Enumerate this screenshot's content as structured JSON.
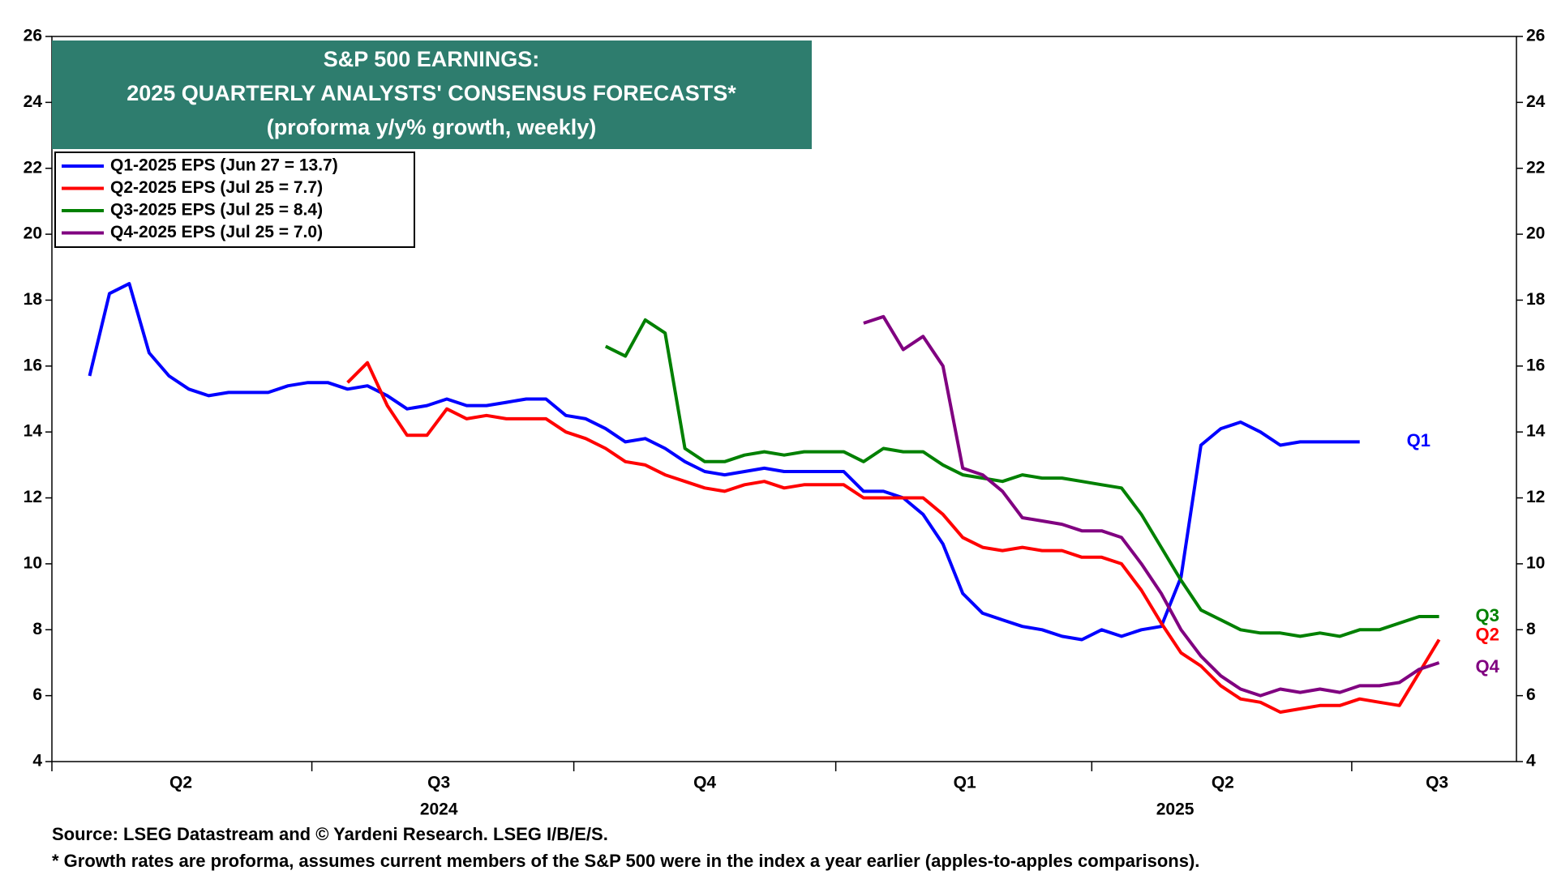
{
  "chart_data": {
    "type": "line",
    "title": [
      "S&P 500 EARNINGS:",
      "2025 QUARTERLY ANALYSTS' CONSENSUS FORECASTS*",
      "(proforma y/y% growth, weekly)"
    ],
    "source": [
      "Source: LSEG Datastream and © Yardeni Research. LSEG I/B/E/S.",
      "* Growth rates are proforma, assumes current members of the S&P 500 were in the index a year earlier (apples-to-apples comparisons)."
    ],
    "x": [
      0,
      1,
      2,
      3,
      4,
      5,
      6,
      7,
      8,
      9,
      10,
      11,
      12,
      13,
      14,
      15,
      16,
      17,
      18,
      19,
      20,
      21,
      22,
      23,
      24,
      25,
      26,
      27,
      28,
      29,
      30,
      31,
      32,
      33,
      34,
      35,
      36,
      37,
      38,
      39,
      40,
      41,
      42,
      43,
      44,
      45,
      46,
      47,
      48,
      49,
      50,
      51,
      52,
      53,
      54,
      55,
      56,
      57,
      58,
      59,
      60,
      61,
      62,
      63,
      64,
      65,
      66,
      67,
      68
    ],
    "xlim": [
      -1.9,
      71.9
    ],
    "xticks": [
      {
        "value": 4.6,
        "label": "Q2"
      },
      {
        "value": 17.6,
        "label": "Q3"
      },
      {
        "value": 31.0,
        "label": "Q4"
      },
      {
        "value": 44.1,
        "label": "Q1"
      },
      {
        "value": 57.1,
        "label": "Q2"
      },
      {
        "value": 67.9,
        "label": "Q3"
      }
    ],
    "quarter_bounds": [
      -1.9,
      11.2,
      24.4,
      37.6,
      50.5,
      63.6
    ],
    "year_labels": [
      {
        "value": 17.6,
        "label": "2024"
      },
      {
        "value": 54.7,
        "label": "2025"
      }
    ],
    "ylim": [
      4,
      26
    ],
    "yticks": [
      4,
      6,
      8,
      10,
      12,
      14,
      16,
      18,
      20,
      22,
      24,
      26
    ],
    "y2lim": [
      4,
      26
    ],
    "y2ticks": [
      4,
      6,
      8,
      10,
      12,
      14,
      16,
      18,
      20,
      22,
      24,
      26
    ],
    "legend": "upper left",
    "series": [
      {
        "name": "Q1-2025 EPS (Jun 27 = 13.7)",
        "end_label": "Q1",
        "color": "#0000ff",
        "values": [
          15.7,
          18.2,
          18.5,
          16.4,
          15.7,
          15.3,
          15.1,
          15.2,
          15.2,
          15.2,
          15.4,
          15.5,
          15.5,
          15.3,
          15.4,
          15.1,
          14.7,
          14.8,
          15.0,
          14.8,
          14.8,
          14.9,
          15.0,
          15.0,
          14.5,
          14.4,
          14.1,
          13.7,
          13.8,
          13.5,
          13.1,
          12.8,
          12.7,
          12.8,
          12.9,
          12.8,
          12.8,
          12.8,
          12.8,
          12.2,
          12.2,
          12.0,
          11.5,
          10.6,
          9.1,
          8.5,
          8.3,
          8.1,
          8.0,
          7.8,
          7.7,
          8.0,
          7.8,
          8.0,
          8.1,
          9.6,
          13.6,
          14.1,
          14.3,
          14.0,
          13.6,
          13.7,
          13.7,
          13.7,
          13.7,
          null,
          null,
          null,
          null
        ]
      },
      {
        "name": "Q2-2025 EPS (Jul 25 = 7.7)",
        "end_label": "Q2",
        "color": "#ff0000",
        "values": [
          null,
          null,
          null,
          null,
          null,
          null,
          null,
          null,
          null,
          null,
          null,
          null,
          null,
          15.5,
          16.1,
          14.8,
          13.9,
          13.9,
          14.7,
          14.4,
          14.5,
          14.4,
          14.4,
          14.4,
          14.0,
          13.8,
          13.5,
          13.1,
          13.0,
          12.7,
          12.5,
          12.3,
          12.2,
          12.4,
          12.5,
          12.3,
          12.4,
          12.4,
          12.4,
          12.0,
          12.0,
          12.0,
          12.0,
          11.5,
          10.8,
          10.5,
          10.4,
          10.5,
          10.4,
          10.4,
          10.2,
          10.2,
          10.0,
          9.2,
          8.2,
          7.3,
          6.9,
          6.3,
          5.9,
          5.8,
          5.5,
          5.6,
          5.7,
          5.7,
          5.9,
          5.8,
          5.7,
          6.7,
          7.7
        ]
      },
      {
        "name": "Q3-2025 EPS (Jul 25 = 8.4)",
        "end_label": "Q3",
        "color": "#008000",
        "values": [
          null,
          null,
          null,
          null,
          null,
          null,
          null,
          null,
          null,
          null,
          null,
          null,
          null,
          null,
          null,
          null,
          null,
          null,
          null,
          null,
          null,
          null,
          null,
          null,
          null,
          null,
          16.6,
          16.3,
          17.4,
          17.0,
          13.5,
          13.1,
          13.1,
          13.3,
          13.4,
          13.3,
          13.4,
          13.4,
          13.4,
          13.1,
          13.5,
          13.4,
          13.4,
          13.0,
          12.7,
          12.6,
          12.5,
          12.7,
          12.6,
          12.6,
          12.5,
          12.4,
          12.3,
          11.5,
          10.5,
          9.5,
          8.6,
          8.3,
          8.0,
          7.9,
          7.9,
          7.8,
          7.9,
          7.8,
          8.0,
          8.0,
          8.2,
          8.4,
          8.4
        ]
      },
      {
        "name": "Q4-2025 EPS (Jul 25 = 7.0)",
        "end_label": "Q4",
        "color": "#800080",
        "values": [
          null,
          null,
          null,
          null,
          null,
          null,
          null,
          null,
          null,
          null,
          null,
          null,
          null,
          null,
          null,
          null,
          null,
          null,
          null,
          null,
          null,
          null,
          null,
          null,
          null,
          null,
          null,
          null,
          null,
          null,
          null,
          null,
          null,
          null,
          null,
          null,
          null,
          null,
          null,
          17.3,
          17.5,
          16.5,
          16.9,
          16.0,
          12.9,
          12.7,
          12.2,
          11.4,
          11.3,
          11.2,
          11.0,
          11.0,
          10.8,
          10.0,
          9.1,
          8.0,
          7.2,
          6.6,
          6.2,
          6.0,
          6.2,
          6.1,
          6.2,
          6.1,
          6.3,
          6.3,
          6.4,
          6.8,
          7.0
        ]
      }
    ],
    "title_color": "#2e7d6e"
  }
}
